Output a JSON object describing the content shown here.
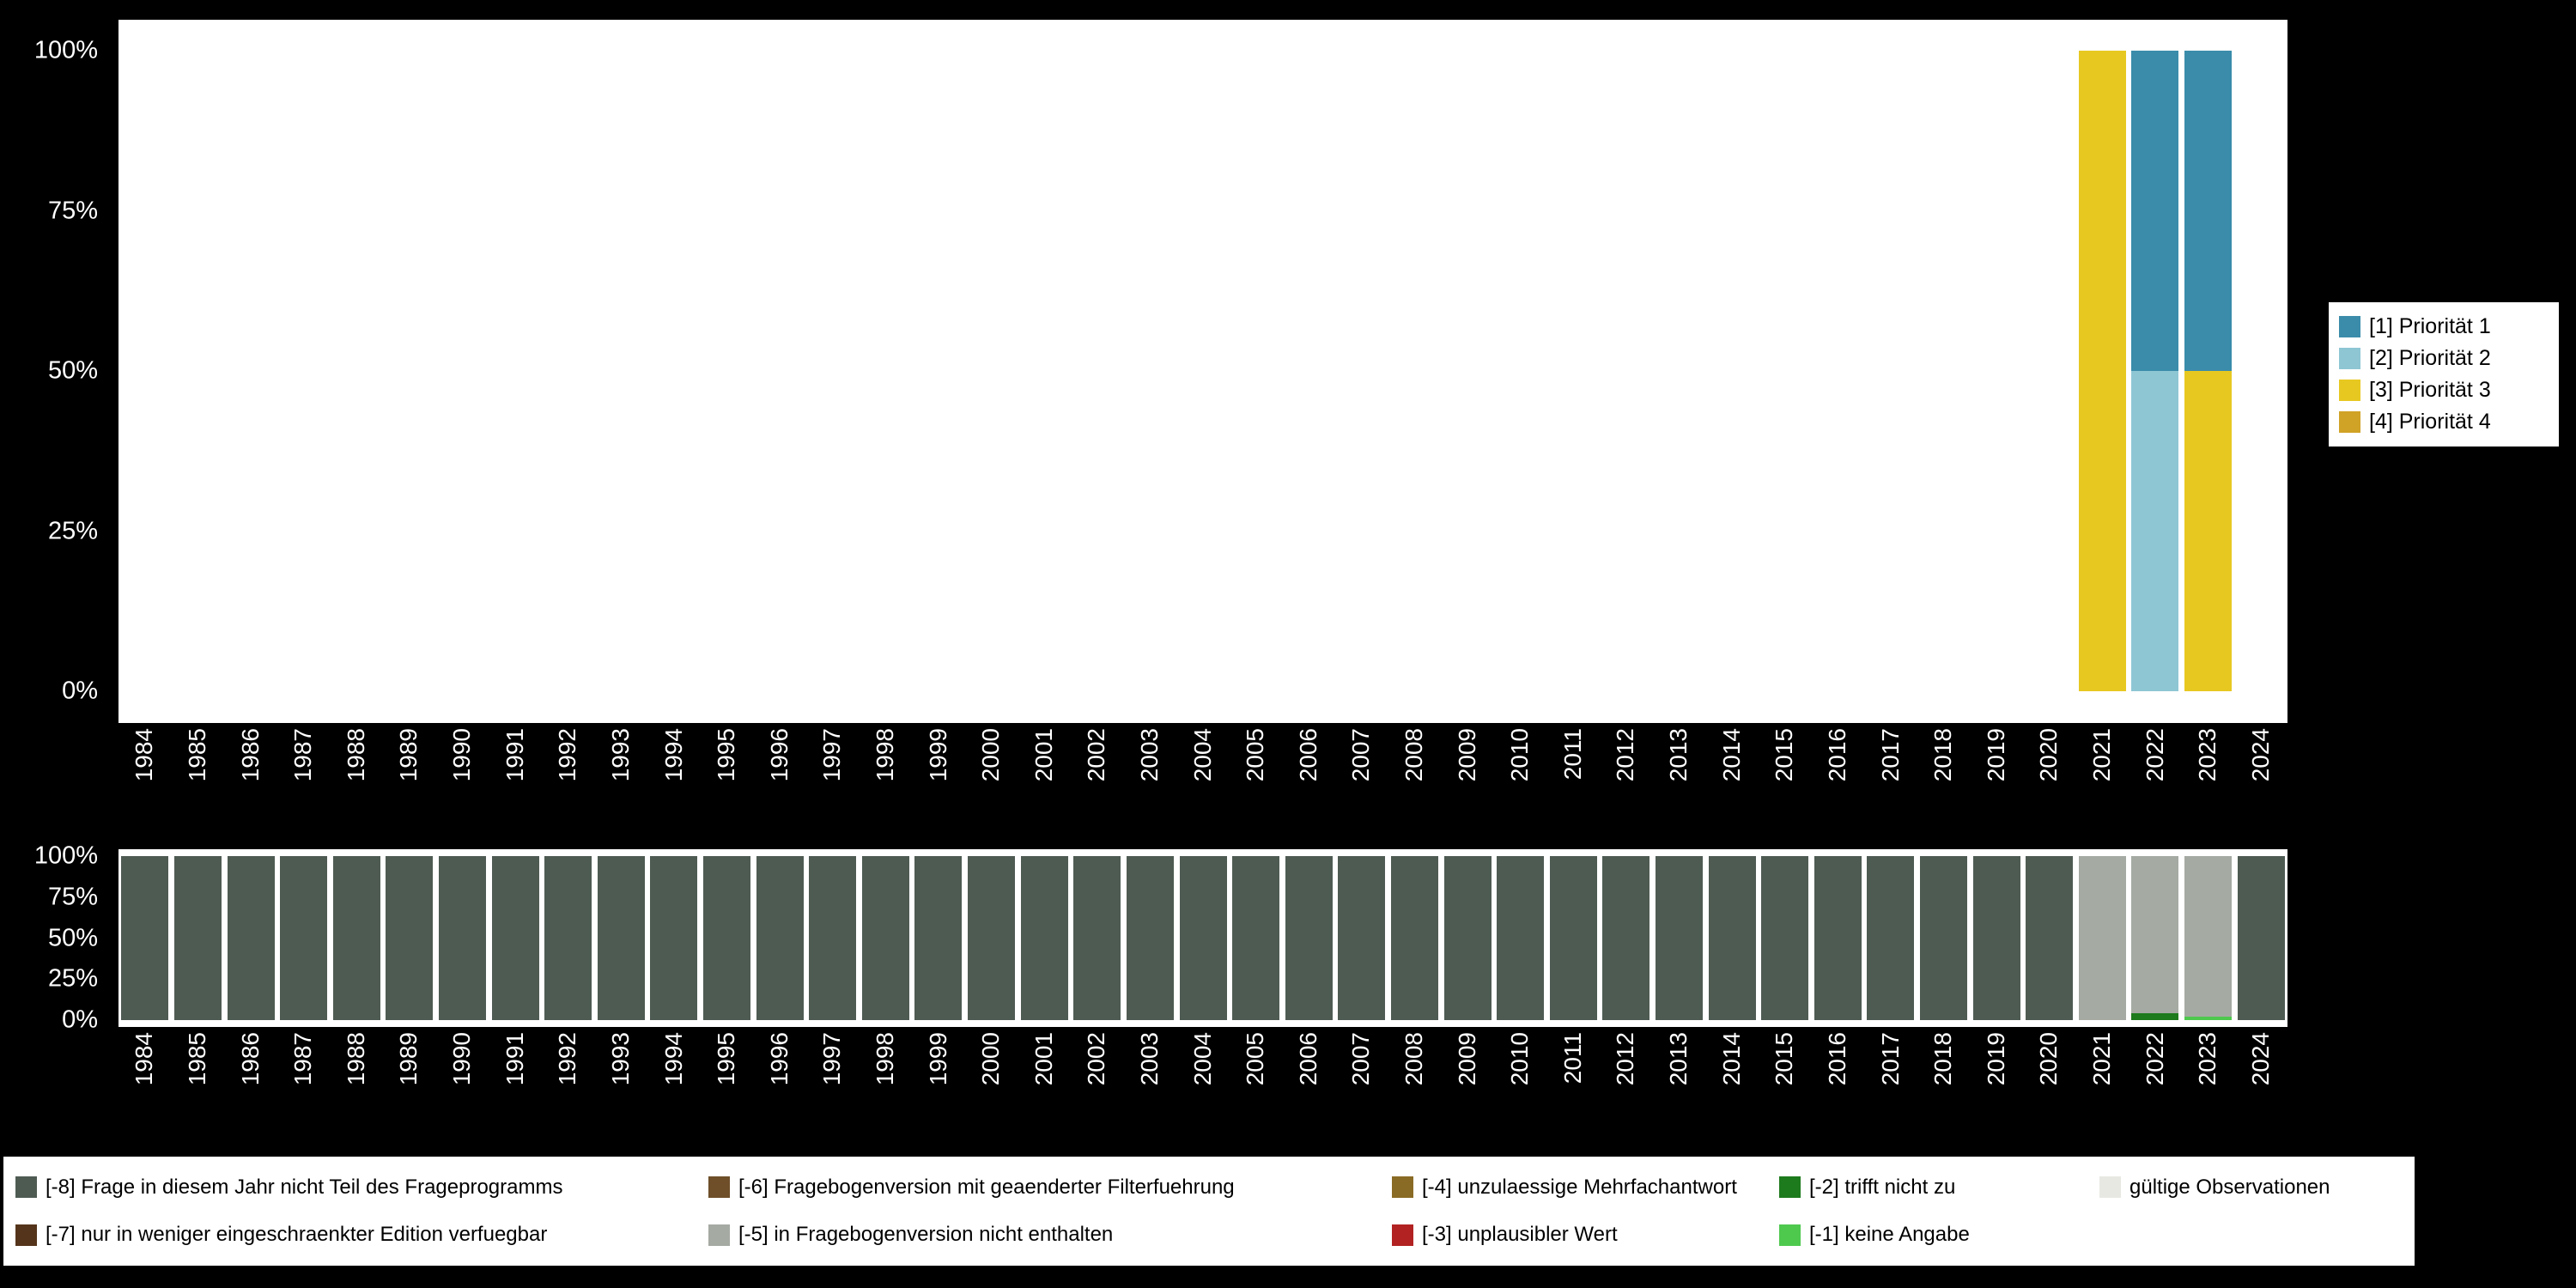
{
  "page": {
    "background_color": "#000000",
    "panel_color": "#ffffff",
    "axis_text_color": "#ffffff",
    "legend_text_color": "#000000"
  },
  "chart_data": [
    {
      "id": "priorities",
      "type": "bar",
      "stacked": true,
      "title": "",
      "x": [
        "1984",
        "1985",
        "1986",
        "1987",
        "1988",
        "1989",
        "1990",
        "1991",
        "1992",
        "1993",
        "1994",
        "1995",
        "1996",
        "1997",
        "1998",
        "1999",
        "2000",
        "2001",
        "2002",
        "2003",
        "2004",
        "2005",
        "2006",
        "2007",
        "2008",
        "2009",
        "2010",
        "2011",
        "2012",
        "2013",
        "2014",
        "2015",
        "2016",
        "2017",
        "2018",
        "2019",
        "2020",
        "2021",
        "2022",
        "2023",
        "2024"
      ],
      "ylim": [
        0,
        100
      ],
      "yticks": [
        {
          "value": 100,
          "label": "100%"
        },
        {
          "value": 75,
          "label": "75%"
        },
        {
          "value": 50,
          "label": "50%"
        },
        {
          "value": 25,
          "label": "25%"
        },
        {
          "value": 0,
          "label": "0%"
        }
      ],
      "bars": {
        "2021": [
          {
            "series": "[3] Priorität 3",
            "value": 100
          }
        ],
        "2022": [
          {
            "series": "[2] Priorität 2",
            "value": 50
          },
          {
            "series": "[1] Priorität 1",
            "value": 50
          }
        ],
        "2023": [
          {
            "series": "[3] Priorität 3",
            "value": 50
          },
          {
            "series": "[1] Priorität 1",
            "value": 50
          }
        ]
      },
      "legend_position": "right",
      "legend": [
        {
          "label": "[1] Priorität 1",
          "color": "#3a8caa"
        },
        {
          "label": "[2] Priorität 2",
          "color": "#8ec6d4"
        },
        {
          "label": "[3] Priorität 3",
          "color": "#e7c821"
        },
        {
          "label": "[4] Priorität 4",
          "color": "#d0a226"
        }
      ]
    },
    {
      "id": "missings",
      "type": "bar",
      "stacked": true,
      "title": "",
      "x": [
        "1984",
        "1985",
        "1986",
        "1987",
        "1988",
        "1989",
        "1990",
        "1991",
        "1992",
        "1993",
        "1994",
        "1995",
        "1996",
        "1997",
        "1998",
        "1999",
        "2000",
        "2001",
        "2002",
        "2003",
        "2004",
        "2005",
        "2006",
        "2007",
        "2008",
        "2009",
        "2010",
        "2011",
        "2012",
        "2013",
        "2014",
        "2015",
        "2016",
        "2017",
        "2018",
        "2019",
        "2020",
        "2021",
        "2022",
        "2023",
        "2024"
      ],
      "ylim": [
        0,
        100
      ],
      "yticks": [
        {
          "value": 100,
          "label": "100%"
        },
        {
          "value": 75,
          "label": "75%"
        },
        {
          "value": 50,
          "label": "50%"
        },
        {
          "value": 25,
          "label": "25%"
        },
        {
          "value": 0,
          "label": "0%"
        }
      ],
      "default_bar": [
        {
          "series": "[-8] Frage in diesem Jahr nicht Teil des Frageprogramms",
          "value": 100
        }
      ],
      "bars": {
        "2021": [
          {
            "series": "[-5] in Fragebogenversion nicht enthalten",
            "value": 100
          }
        ],
        "2022": [
          {
            "series": "[-2] trifft nicht zu",
            "value": 4
          },
          {
            "series": "[-5] in Fragebogenversion nicht enthalten",
            "value": 96
          }
        ],
        "2023": [
          {
            "series": "[-1] keine Angabe",
            "value": 2
          },
          {
            "series": "[-5] in Fragebogenversion nicht enthalten",
            "value": 98
          }
        ]
      },
      "legend_position": "bottom",
      "legend": [
        {
          "label": "[-8] Frage in diesem Jahr nicht Teil des Frageprogramms",
          "color": "#4e5b53"
        },
        {
          "label": "[-7] nur in weniger eingeschraenkter Edition verfuegbar",
          "color": "#54341b"
        },
        {
          "label": "[-6] Fragebogenversion mit geaenderter Filterfuehrung",
          "color": "#6e4f2a"
        },
        {
          "label": "[-5] in Fragebogenversion nicht enthalten",
          "color": "#a5aaa3"
        },
        {
          "label": "[-4] unzulaessige Mehrfachantwort",
          "color": "#8a6b25"
        },
        {
          "label": "[-3] unplausibler Wert",
          "color": "#b22222"
        },
        {
          "label": "[-2] trifft nicht zu",
          "color": "#1d7a1d"
        },
        {
          "label": "[-1] keine Angabe",
          "color": "#4ec94e"
        },
        {
          "label": "gültige Observationen",
          "color": "#e8e8e3"
        }
      ]
    }
  ]
}
